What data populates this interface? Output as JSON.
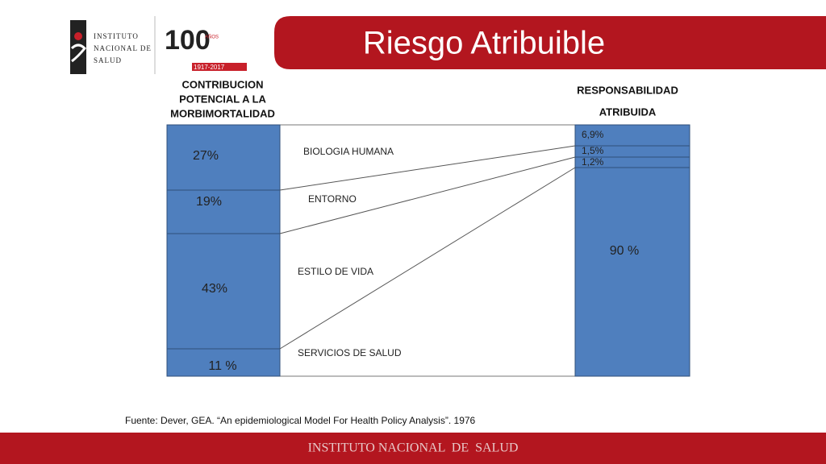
{
  "header": {
    "title": "Riesgo Atribuible",
    "logo": {
      "lines": [
        "INSTITUTO",
        "NACIONAL DE",
        "SALUD"
      ],
      "anniversary": "100",
      "anniversary_sub": "AÑOS",
      "years": "1917-2017"
    }
  },
  "diagram": {
    "left_heading": [
      "CONTRIBUCION",
      "POTENCIAL A LA",
      "MORBIMORTALIDAD"
    ],
    "right_heading": [
      "RESPONSABILIDAD",
      "ATRIBUIDA"
    ],
    "left_segments": [
      "27%",
      "19%",
      "43%",
      "11 %"
    ],
    "categories": [
      "BIOLOGIA HUMANA",
      "ENTORNO",
      "ESTILO DE VIDA",
      "SERVICIOS DE SALUD"
    ],
    "right_segments": [
      "6,9%",
      "1,5%",
      "1,2%",
      "90 %"
    ]
  },
  "source": "Fuente: Dever, GEA. “An epidemiological Model For Health Policy Analysis”. 1976",
  "footer": "INSTITUTO NACIONAL  DE  SALUD"
}
